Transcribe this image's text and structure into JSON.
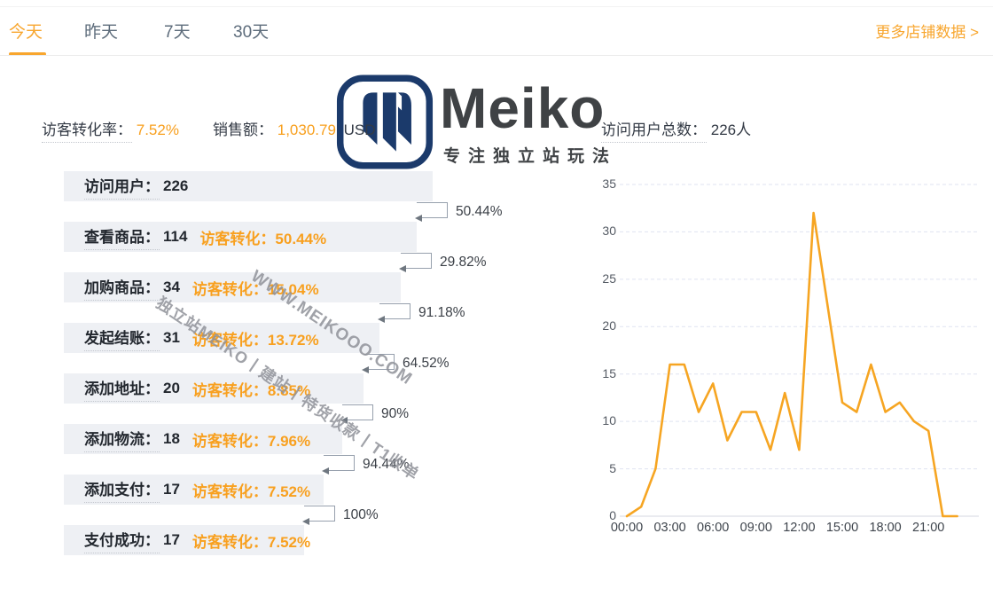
{
  "tabs": [
    {
      "label": "今天",
      "active": true
    },
    {
      "label": "昨天",
      "active": false
    },
    {
      "label": "7天",
      "active": false
    },
    {
      "label": "30天",
      "active": false
    }
  ],
  "more_link": {
    "label": "更多店铺数据 >"
  },
  "stats": {
    "conversion": {
      "label": "访客转化率：",
      "value": "7.52%"
    },
    "sales": {
      "label": "销售额：",
      "value": "1,030.79",
      "unit": "USD"
    },
    "visitors": {
      "label": "访问用户总数：",
      "value": "226人"
    }
  },
  "brand": {
    "wordmark": "Meiko",
    "tagline": "专注独立站玩法"
  },
  "watermarks": {
    "site": "WWW.MEIKOOO.COM",
    "slogan": "独立站MEIKO丨建站丨特货收款丨T1收单"
  },
  "funnel": {
    "steps": [
      {
        "label": "访问用户：",
        "value": "226",
        "conv": ""
      },
      {
        "label": "查看商品：",
        "value": "114",
        "conv": "访客转化：50.44%"
      },
      {
        "label": "加购商品：",
        "value": "34",
        "conv": "访客转化：15.04%"
      },
      {
        "label": "发起结账：",
        "value": "31",
        "conv": "访客转化：13.72%"
      },
      {
        "label": "添加地址：",
        "value": "20",
        "conv": "访客转化：8.85%"
      },
      {
        "label": "添加物流：",
        "value": "18",
        "conv": "访客转化：7.96%"
      },
      {
        "label": "添加支付：",
        "value": "17",
        "conv": "访客转化：7.52%"
      },
      {
        "label": "支付成功：",
        "value": "17",
        "conv": "访客转化：7.52%"
      }
    ],
    "step_rates": [
      "50.44%",
      "29.82%",
      "91.18%",
      "64.52%",
      "90%",
      "94.44%",
      "100%"
    ]
  },
  "chart_data": {
    "type": "line",
    "x": [
      "00:00",
      "01:00",
      "02:00",
      "03:00",
      "04:00",
      "05:00",
      "06:00",
      "07:00",
      "08:00",
      "09:00",
      "10:00",
      "11:00",
      "12:00",
      "13:00",
      "14:00",
      "15:00",
      "16:00",
      "17:00",
      "18:00",
      "19:00",
      "20:00",
      "21:00",
      "22:00",
      "23:00"
    ],
    "values": [
      0,
      1,
      5,
      16,
      16,
      11,
      14,
      8,
      11,
      11,
      7,
      13,
      7,
      32,
      22,
      12,
      11,
      16,
      11,
      12,
      10,
      9,
      0,
      0
    ],
    "x_tick_labels": [
      "00:00",
      "03:00",
      "06:00",
      "09:00",
      "12:00",
      "15:00",
      "18:00",
      "21:00"
    ],
    "y_ticks": [
      0,
      5,
      10,
      15,
      20,
      25,
      30,
      35
    ],
    "ylim": [
      0,
      35
    ],
    "grid": "horizontal-dashed",
    "legend_position": "none",
    "title": "",
    "xlabel": "",
    "ylabel": "",
    "line_color": "#f6a522"
  },
  "colors": {
    "accent": "#f8a62e",
    "bar_bg": "#eef0f4",
    "grid_line": "#dfe3f1",
    "axis_line": "#d4d7e0",
    "logo_navy": "#1b3a6b",
    "watermark": "#8f9299"
  }
}
